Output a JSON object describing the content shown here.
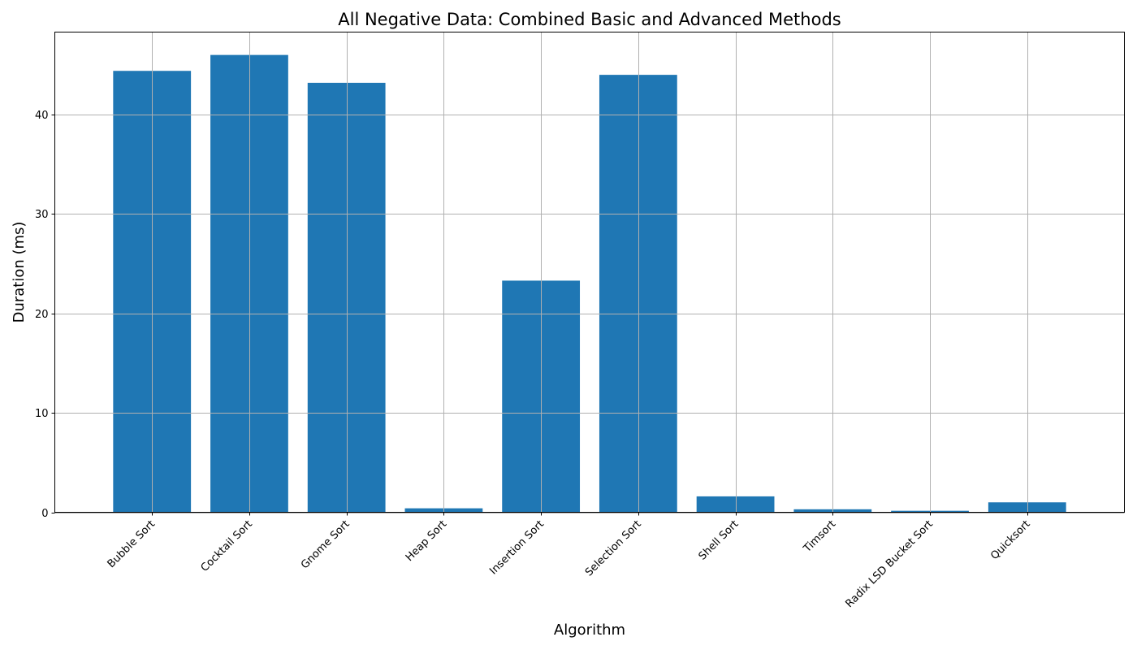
{
  "chart_data": {
    "type": "bar",
    "title": "All Negative Data: Combined Basic and Advanced Methods",
    "xlabel": "Algorithm",
    "ylabel": "Duration (ms)",
    "categories": [
      "Bubble Sort",
      "Cocktail Sort",
      "Gnome Sort",
      "Heap Sort",
      "Insertion Sort",
      "Selection Sort",
      "Shell Sort",
      "Timsort",
      "Radix LSD Bucket Sort",
      "Quicksort"
    ],
    "values": [
      44.4,
      46.0,
      43.2,
      0.4,
      23.3,
      44.0,
      1.6,
      0.3,
      0.15,
      1.0
    ],
    "ylim": [
      0,
      48.3
    ],
    "yticks": [
      0,
      10,
      20,
      30,
      40
    ],
    "grid": true,
    "bar_color": "#1f77b4"
  }
}
